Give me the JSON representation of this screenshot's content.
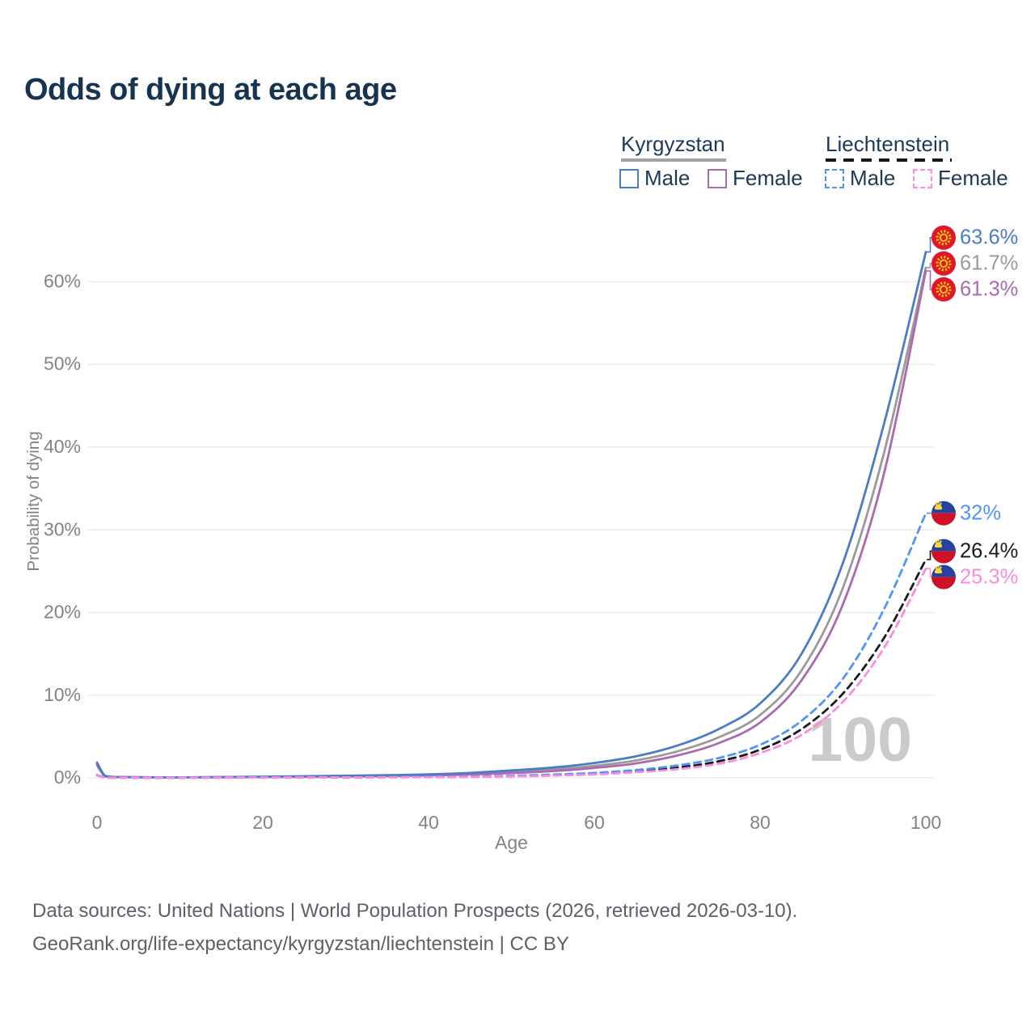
{
  "title": "Odds of dying at each age",
  "legend": {
    "groups": [
      {
        "title": "Kyrgyzstan",
        "style": "solid",
        "items": [
          {
            "label": "Male",
            "color": "#4a7cc7"
          },
          {
            "label": "Female",
            "color": "#aa6ab0"
          }
        ]
      },
      {
        "title": "Liechtenstein",
        "style": "dashed",
        "items": [
          {
            "label": "Male",
            "color": "#4e95f5"
          },
          {
            "label": "Female",
            "color": "#fb8be0"
          }
        ]
      }
    ]
  },
  "chart_data": {
    "type": "line",
    "title": "Odds of dying at each age",
    "xlabel": "Age",
    "ylabel": "Probability of dying",
    "xlim": [
      0,
      100
    ],
    "ylim": [
      0,
      65
    ],
    "xticks": [
      0,
      20,
      40,
      60,
      80,
      100
    ],
    "yticks": [
      0,
      10,
      20,
      30,
      40,
      50,
      60
    ],
    "ytick_suffix": "%",
    "grid": "horizontal",
    "watermark": "100",
    "legend_position": "top-right",
    "x": [
      0,
      0.5,
      1,
      2,
      3,
      5,
      10,
      15,
      20,
      25,
      30,
      35,
      40,
      45,
      50,
      55,
      60,
      65,
      70,
      75,
      80,
      85,
      90,
      95,
      100
    ],
    "series": [
      {
        "id": "kg-all",
        "country": "Kyrgyzstan",
        "name": "Kyrgyzstan All",
        "line": "solid",
        "color": "#9a9a9a",
        "end_label": "61.7%",
        "flag": "kyrgyzstan",
        "values": [
          1.7,
          0.82,
          0.22,
          0.11,
          0.09,
          0.07,
          0.05,
          0.08,
          0.12,
          0.16,
          0.2,
          0.27,
          0.34,
          0.5,
          0.72,
          1.0,
          1.45,
          2.1,
          3.2,
          4.9,
          7.6,
          13.0,
          23.0,
          39.5,
          61.7
        ]
      },
      {
        "id": "kg-female",
        "country": "Kyrgyzstan",
        "name": "Kyrgyzstan Female",
        "line": "solid",
        "color": "#aa6ab0",
        "end_label": "61.3%",
        "flag": "kyrgyzstan",
        "values": [
          1.55,
          0.75,
          0.2,
          0.1,
          0.08,
          0.06,
          0.05,
          0.07,
          0.1,
          0.13,
          0.16,
          0.22,
          0.28,
          0.4,
          0.58,
          0.82,
          1.2,
          1.75,
          2.7,
          4.2,
          6.7,
          11.8,
          21.0,
          37.0,
          61.3
        ]
      },
      {
        "id": "kg-male",
        "country": "Kyrgyzstan",
        "name": "Kyrgyzstan Male",
        "line": "solid",
        "color": "#4a7cc7",
        "end_label": "63.6%",
        "flag": "kyrgyzstan",
        "values": [
          1.86,
          0.9,
          0.25,
          0.12,
          0.1,
          0.08,
          0.06,
          0.1,
          0.15,
          0.2,
          0.25,
          0.33,
          0.42,
          0.6,
          0.9,
          1.25,
          1.8,
          2.6,
          3.9,
          5.9,
          9.0,
          15.0,
          26.0,
          43.0,
          63.6
        ]
      },
      {
        "id": "li-all",
        "country": "Liechtenstein",
        "name": "Liechtenstein All",
        "line": "dashed",
        "color": "#1a1a1a",
        "end_label": "26.4%",
        "flag": "liechtenstein",
        "values": [
          0.3,
          0.15,
          0.04,
          0.03,
          0.03,
          0.02,
          0.02,
          0.03,
          0.05,
          0.06,
          0.07,
          0.08,
          0.1,
          0.14,
          0.2,
          0.32,
          0.5,
          0.8,
          1.25,
          2.0,
          3.4,
          5.9,
          10.2,
          17.0,
          26.4
        ]
      },
      {
        "id": "li-male",
        "country": "Liechtenstein",
        "name": "Liechtenstein Male",
        "line": "dashed",
        "color": "#4e95f5",
        "end_label": "32%",
        "flag": "liechtenstein",
        "values": [
          0.35,
          0.18,
          0.05,
          0.04,
          0.03,
          0.03,
          0.03,
          0.04,
          0.06,
          0.07,
          0.08,
          0.1,
          0.12,
          0.17,
          0.25,
          0.4,
          0.6,
          0.95,
          1.5,
          2.4,
          4.0,
          6.9,
          12.0,
          20.5,
          32.0
        ]
      },
      {
        "id": "li-female",
        "country": "Liechtenstein",
        "name": "Liechtenstein Female",
        "line": "dashed",
        "color": "#fb8be0",
        "end_label": "25.3%",
        "flag": "liechtenstein",
        "values": [
          0.28,
          0.14,
          0.04,
          0.03,
          0.02,
          0.02,
          0.02,
          0.03,
          0.04,
          0.05,
          0.06,
          0.07,
          0.09,
          0.12,
          0.17,
          0.27,
          0.42,
          0.68,
          1.05,
          1.7,
          3.0,
          5.2,
          9.2,
          15.8,
          25.3
        ]
      }
    ]
  },
  "colors": {
    "title_text": "#16334f",
    "axis_text": "#85827f",
    "grid_line": "#eaeaea",
    "watermark": "#cacaca",
    "flags": {
      "kyrgyzstan": {
        "red": "#e0162b",
        "yellow": "#ffcf00"
      },
      "liechtenstein": {
        "blue": "#26429e",
        "red": "#ce1126",
        "yellow": "#ffd83d"
      }
    }
  },
  "footer": {
    "line1": "Data sources: United Nations | World Population Prospects (2026, retrieved 2026-03-10).",
    "line2": "GeoRank.org/life-expectancy/kyrgyzstan/liechtenstein | CC BY"
  }
}
